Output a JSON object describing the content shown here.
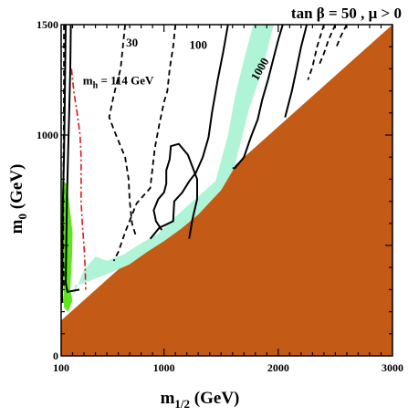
{
  "chart_data": {
    "type": "area",
    "title": "tan β = 50 ,  μ > 0",
    "xlabel_main": "m",
    "xlabel_sub": "1/2",
    "xlabel_unit": " (GeV)",
    "ylabel_main": "m",
    "ylabel_sub": "0",
    "ylabel_unit": " (GeV)",
    "xlim": [
      100,
      3000
    ],
    "ylim": [
      0,
      1500
    ],
    "x_ticks": [
      {
        "value": 100,
        "label": "100"
      },
      {
        "value": 1000,
        "label": "1000"
      },
      {
        "value": 2000,
        "label": "2000"
      },
      {
        "value": 3000,
        "label": "3000"
      }
    ],
    "y_ticks": [
      {
        "value": 0,
        "label": "0"
      },
      {
        "value": 1000,
        "label": "1000"
      },
      {
        "value": 1500,
        "label": "1500"
      }
    ],
    "colors": {
      "excluded_region": "#c35a16",
      "cosmology_band": "#b0f4d8",
      "gminus2_region": "#5de61e",
      "higgs_line": "#e0141e",
      "contour": "#000000"
    },
    "regions": [
      {
        "name": "excluded_region",
        "polygon": [
          [
            100,
            160
          ],
          [
            3000,
            1500
          ],
          [
            3000,
            0
          ],
          [
            100,
            0
          ]
        ]
      },
      {
        "name": "cosmology_band",
        "polygon": [
          [
            205,
            270
          ],
          [
            300,
            390
          ],
          [
            400,
            450
          ],
          [
            500,
            430
          ],
          [
            650,
            460
          ],
          [
            800,
            510
          ],
          [
            950,
            555
          ],
          [
            1100,
            630
          ],
          [
            1250,
            700
          ],
          [
            1450,
            790
          ],
          [
            1560,
            1000
          ],
          [
            1620,
            1170
          ],
          [
            1680,
            1300
          ],
          [
            1780,
            1500
          ],
          [
            1960,
            1500
          ],
          [
            1870,
            1310
          ],
          [
            1740,
            1110
          ],
          [
            1615,
            850
          ],
          [
            1500,
            750
          ],
          [
            1300,
            640
          ],
          [
            1150,
            575
          ],
          [
            1000,
            520
          ],
          [
            850,
            470
          ],
          [
            700,
            415
          ],
          [
            550,
            380
          ],
          [
            400,
            350
          ],
          [
            300,
            330
          ],
          [
            220,
            320
          ]
        ]
      },
      {
        "name": "gminus2_region",
        "polygon": [
          [
            110,
            790
          ],
          [
            150,
            780
          ],
          [
            200,
            560
          ],
          [
            195,
            450
          ],
          [
            180,
            300
          ],
          [
            200,
            250
          ],
          [
            160,
            200
          ],
          [
            125,
            220
          ],
          [
            110,
            480
          ]
        ]
      }
    ],
    "contours": [
      {
        "label": "",
        "style": "solid",
        "points": [
          [
            140,
            1500
          ],
          [
            135,
            1300
          ],
          [
            130,
            1100
          ],
          [
            125,
            900
          ],
          [
            115,
            700
          ],
          [
            110,
            500
          ],
          [
            108,
            280
          ],
          [
            112,
            240
          ]
        ]
      },
      {
        "label": "",
        "style": "solid",
        "points": [
          [
            185,
            1500
          ],
          [
            180,
            1300
          ],
          [
            170,
            1100
          ],
          [
            160,
            900
          ],
          [
            150,
            700
          ],
          [
            145,
            500
          ],
          [
            140,
            330
          ],
          [
            155,
            290
          ],
          [
            260,
            300
          ]
        ]
      },
      {
        "label": "",
        "style": "dashed",
        "points": [
          [
            125,
            1500
          ],
          [
            125,
            1250
          ],
          [
            123,
            1050
          ],
          [
            120,
            850
          ],
          [
            118,
            650
          ],
          [
            118,
            450
          ],
          [
            125,
            300
          ]
        ]
      },
      {
        "label": "30",
        "style": "dashed",
        "points": [
          [
            660,
            1500
          ],
          [
            640,
            1400
          ],
          [
            620,
            1300
          ],
          [
            560,
            1180
          ],
          [
            520,
            1080
          ],
          [
            580,
            1000
          ],
          [
            660,
            900
          ],
          [
            690,
            800
          ],
          [
            700,
            700
          ],
          [
            720,
            600
          ],
          [
            750,
            550
          ]
        ]
      },
      {
        "label": "",
        "style": "dashed",
        "points": [
          [
            1100,
            1500
          ],
          [
            1080,
            1400
          ],
          [
            1050,
            1300
          ],
          [
            1030,
            1200
          ],
          [
            1000,
            1150
          ],
          [
            960,
            1050
          ],
          [
            920,
            940
          ],
          [
            900,
            850
          ],
          [
            880,
            760
          ],
          [
            760,
            690
          ],
          [
            660,
            560
          ],
          [
            600,
            470
          ],
          [
            560,
            430
          ]
        ]
      },
      {
        "label": "100",
        "style": "solid",
        "points": [
          [
            1560,
            1500
          ],
          [
            1520,
            1380
          ],
          [
            1470,
            1250
          ],
          [
            1420,
            1100
          ],
          [
            1390,
            990
          ],
          [
            1340,
            900
          ],
          [
            1280,
            830
          ],
          [
            1220,
            790
          ],
          [
            1160,
            740
          ],
          [
            1090,
            700
          ],
          [
            1080,
            610
          ],
          [
            960,
            580
          ],
          [
            880,
            530
          ]
        ]
      },
      {
        "label": "",
        "style": "solid",
        "points": [
          [
            1220,
            530
          ],
          [
            1250,
            620
          ],
          [
            1290,
            710
          ],
          [
            1290,
            800
          ],
          [
            1210,
            910
          ],
          [
            1130,
            960
          ],
          [
            1060,
            950
          ],
          [
            1050,
            890
          ],
          [
            1020,
            840
          ],
          [
            1020,
            780
          ],
          [
            1000,
            740
          ],
          [
            950,
            710
          ],
          [
            910,
            660
          ],
          [
            930,
            610
          ],
          [
            980,
            570
          ]
        ]
      },
      {
        "label": "1000",
        "style": "solid",
        "points": [
          [
            2040,
            1500
          ],
          [
            2000,
            1430
          ],
          [
            1960,
            1350
          ],
          [
            1910,
            1250
          ],
          [
            1860,
            1160
          ],
          [
            1820,
            1070
          ],
          [
            1760,
            990
          ],
          [
            1700,
            900
          ],
          [
            1620,
            850
          ],
          [
            1600,
            850
          ]
        ]
      },
      {
        "label": "",
        "style": "solid",
        "points": [
          [
            2250,
            1500
          ],
          [
            2200,
            1400
          ],
          [
            2160,
            1300
          ],
          [
            2120,
            1200
          ],
          [
            2080,
            1120
          ],
          [
            2060,
            1080
          ]
        ]
      },
      {
        "label": "",
        "style": "dashed",
        "points": [
          [
            2400,
            1500
          ],
          [
            2340,
            1400
          ],
          [
            2300,
            1310
          ],
          [
            2260,
            1250
          ]
        ]
      },
      {
        "label": "",
        "style": "dashed",
        "points": [
          [
            2500,
            1500
          ],
          [
            2440,
            1430
          ],
          [
            2400,
            1370
          ],
          [
            2360,
            1320
          ]
        ]
      },
      {
        "label": "",
        "style": "dashed",
        "points": [
          [
            2600,
            1500
          ],
          [
            2550,
            1450
          ],
          [
            2510,
            1400
          ]
        ]
      }
    ],
    "higgs_contour": {
      "label_main": "m",
      "label_sub": "h",
      "label_rest": " = 114 GeV",
      "points": [
        [
          190,
          1300
        ],
        [
          210,
          1200
        ],
        [
          240,
          1100
        ],
        [
          265,
          1000
        ],
        [
          275,
          900
        ],
        [
          275,
          700
        ],
        [
          285,
          600
        ],
        [
          300,
          500
        ],
        [
          310,
          400
        ],
        [
          315,
          300
        ]
      ]
    }
  }
}
